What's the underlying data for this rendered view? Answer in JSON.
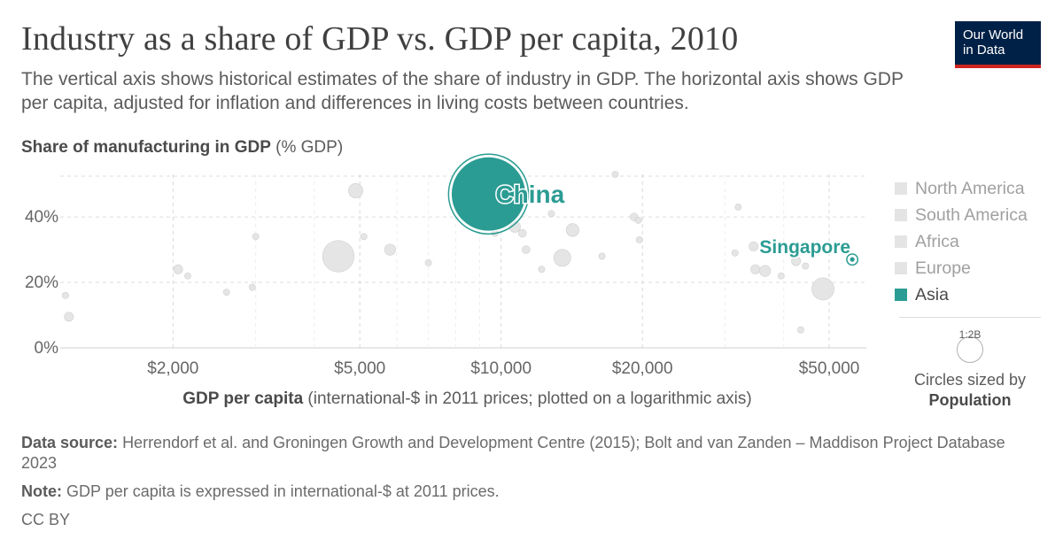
{
  "header": {
    "title": "Industry as a share of GDP vs. GDP per capita, 2010",
    "subtitle": "The vertical axis shows historical estimates of the share of industry in GDP. The horizontal axis shows GDP per capita, adjusted for inflation and differences in living costs between countries.",
    "logo_line1": "Our World",
    "logo_line2": "in Data"
  },
  "colors": {
    "highlight": "#2b9c93",
    "background_point": "#e2e2e2",
    "logo_bg": "#002147",
    "logo_bar": "#ce261e"
  },
  "chart_data": {
    "type": "scatter",
    "title": "Industry as a share of GDP vs. GDP per capita, 2010",
    "ylabel_bold": "Share of manufacturing in GDP",
    "ylabel_unit": "(% GDP)",
    "xlabel_bold": "GDP per capita",
    "xlabel_unit": "(international-$ in 2011 prices; plotted on a logarithmic axis)",
    "x_scale": "log",
    "xlim": [
      1150,
      60000
    ],
    "ylim": [
      0,
      53
    ],
    "x_ticks": [
      2000,
      5000,
      10000,
      20000,
      50000
    ],
    "x_tick_labels": [
      "$2,000",
      "$5,000",
      "$10,000",
      "$20,000",
      "$50,000"
    ],
    "y_ticks": [
      0,
      20,
      40
    ],
    "y_tick_labels": [
      "0%",
      "20%",
      "40%"
    ],
    "grid": true,
    "legend_position": "right",
    "legend": [
      "North America",
      "South America",
      "Africa",
      "Europe",
      "Asia"
    ],
    "legend_active": "Asia",
    "size_legend": {
      "value_label": "1:2B",
      "text": "Circles sized by",
      "variable": "Population"
    },
    "highlighted": [
      {
        "name": "China",
        "x": 9400,
        "y": 47,
        "population_m": 1340
      },
      {
        "name": "Singapore",
        "x": 56000,
        "y": 27,
        "population_m": 5
      }
    ],
    "points": [
      {
        "x": 1180,
        "y": 16,
        "population_m": 10
      },
      {
        "x": 1200,
        "y": 9.5,
        "population_m": 20
      },
      {
        "x": 2050,
        "y": 24,
        "population_m": 20
      },
      {
        "x": 2150,
        "y": 22,
        "population_m": 10
      },
      {
        "x": 2600,
        "y": 17,
        "population_m": 10
      },
      {
        "x": 2950,
        "y": 18.5,
        "population_m": 10
      },
      {
        "x": 3000,
        "y": 34,
        "population_m": 10
      },
      {
        "x": 4500,
        "y": 28,
        "population_m": 240
      },
      {
        "x": 4900,
        "y": 48,
        "population_m": 50
      },
      {
        "x": 5100,
        "y": 34,
        "population_m": 10
      },
      {
        "x": 5800,
        "y": 30,
        "population_m": 30
      },
      {
        "x": 7000,
        "y": 26,
        "population_m": 10
      },
      {
        "x": 8500,
        "y": 48,
        "population_m": 60
      },
      {
        "x": 9700,
        "y": 35,
        "population_m": 10
      },
      {
        "x": 10700,
        "y": 37,
        "population_m": 30
      },
      {
        "x": 11100,
        "y": 35,
        "population_m": 15
      },
      {
        "x": 11300,
        "y": 30,
        "population_m": 15
      },
      {
        "x": 12200,
        "y": 24,
        "population_m": 10
      },
      {
        "x": 12800,
        "y": 41,
        "population_m": 10
      },
      {
        "x": 13500,
        "y": 27.5,
        "population_m": 70
      },
      {
        "x": 14200,
        "y": 36,
        "population_m": 40
      },
      {
        "x": 16400,
        "y": 28,
        "population_m": 10
      },
      {
        "x": 17500,
        "y": 53,
        "population_m": 10
      },
      {
        "x": 19200,
        "y": 40,
        "population_m": 15
      },
      {
        "x": 19600,
        "y": 39,
        "population_m": 10
      },
      {
        "x": 19700,
        "y": 33,
        "population_m": 10
      },
      {
        "x": 32000,
        "y": 43,
        "population_m": 10
      },
      {
        "x": 31500,
        "y": 29,
        "population_m": 10
      },
      {
        "x": 34500,
        "y": 31,
        "population_m": 20
      },
      {
        "x": 34800,
        "y": 24,
        "population_m": 20
      },
      {
        "x": 36500,
        "y": 23.5,
        "population_m": 30
      },
      {
        "x": 39500,
        "y": 22,
        "population_m": 10
      },
      {
        "x": 42500,
        "y": 26.5,
        "population_m": 20
      },
      {
        "x": 44500,
        "y": 25,
        "population_m": 10
      },
      {
        "x": 43500,
        "y": 5.5,
        "population_m": 10
      },
      {
        "x": 48500,
        "y": 18,
        "population_m": 120
      }
    ]
  }
}
